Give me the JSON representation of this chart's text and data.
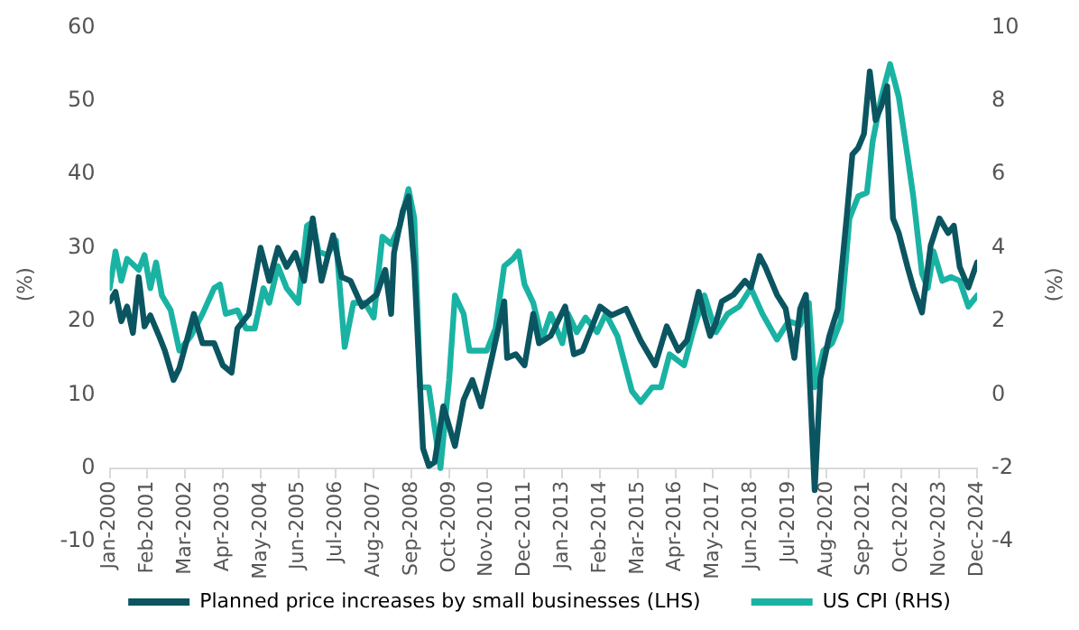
{
  "chart_data": {
    "type": "line",
    "ylabel": "(%)",
    "y2label": "(%)",
    "xlim": [
      "2000-01",
      "2024-12"
    ],
    "xticks": [
      {
        "value": "2000-01",
        "label": "Jan-2000"
      },
      {
        "value": "2001-02",
        "label": "Feb-2001"
      },
      {
        "value": "2002-03",
        "label": "Mar-2002"
      },
      {
        "value": "2003-04",
        "label": "Apr-2003"
      },
      {
        "value": "2004-05",
        "label": "May-2004"
      },
      {
        "value": "2005-06",
        "label": "Jun-2005"
      },
      {
        "value": "2006-07",
        "label": "Jul-2006"
      },
      {
        "value": "2007-08",
        "label": "Aug-2007"
      },
      {
        "value": "2008-09",
        "label": "Sep-2008"
      },
      {
        "value": "2009-10",
        "label": "Oct-2009"
      },
      {
        "value": "2010-11",
        "label": "Nov-2010"
      },
      {
        "value": "2011-12",
        "label": "Dec-2011"
      },
      {
        "value": "2013-01",
        "label": "Jan-2013"
      },
      {
        "value": "2014-02",
        "label": "Feb-2014"
      },
      {
        "value": "2015-03",
        "label": "Mar-2015"
      },
      {
        "value": "2016-04",
        "label": "Apr-2016"
      },
      {
        "value": "2017-05",
        "label": "May-2017"
      },
      {
        "value": "2018-06",
        "label": "Jun-2018"
      },
      {
        "value": "2019-07",
        "label": "Jul-2019"
      },
      {
        "value": "2020-08",
        "label": "Aug-2020"
      },
      {
        "value": "2021-09",
        "label": "Sep-2021"
      },
      {
        "value": "2022-10",
        "label": "Oct-2022"
      },
      {
        "value": "2023-11",
        "label": "Nov-2023"
      },
      {
        "value": "2024-12",
        "label": "Dec-2024"
      }
    ],
    "ylim": [
      -10,
      60
    ],
    "yticks": [
      -10,
      0,
      10,
      20,
      30,
      40,
      50,
      60
    ],
    "y2lim": [
      -4,
      10
    ],
    "y2ticks": [
      -4,
      -2,
      0,
      2,
      4,
      6,
      8,
      10
    ],
    "grid": false,
    "legend": "bottom",
    "marker": "none",
    "line_style": "solid",
    "series": [
      {
        "name": "Planned price increases by small businesses (LHS)",
        "color": "#0b5561",
        "x": [
          "2000-01",
          "2000-03",
          "2000-05",
          "2000-07",
          "2000-09",
          "2000-11",
          "2001-01",
          "2001-03",
          "2001-06",
          "2001-08",
          "2001-11",
          "2002-01",
          "2002-04",
          "2002-06",
          "2002-09",
          "2003-01",
          "2003-04",
          "2003-07",
          "2003-09",
          "2004-01",
          "2004-05",
          "2004-08",
          "2004-11",
          "2005-02",
          "2005-05",
          "2005-08",
          "2005-11",
          "2006-02",
          "2006-06",
          "2006-09",
          "2006-12",
          "2007-04",
          "2007-09",
          "2007-12",
          "2008-02",
          "2008-03",
          "2008-06",
          "2008-08",
          "2008-10",
          "2009-01",
          "2009-03",
          "2009-05",
          "2009-08",
          "2009-12",
          "2010-03",
          "2010-06",
          "2010-09",
          "2011-01",
          "2011-05",
          "2011-06",
          "2011-09",
          "2011-12",
          "2012-03",
          "2012-05",
          "2012-09",
          "2013-02",
          "2013-05",
          "2013-08",
          "2013-12",
          "2014-02",
          "2014-06",
          "2014-11",
          "2015-04",
          "2015-09",
          "2016-01",
          "2016-05",
          "2016-08",
          "2016-12",
          "2017-02",
          "2017-04",
          "2017-06",
          "2017-08",
          "2017-12",
          "2018-04",
          "2018-06",
          "2018-09",
          "2018-11",
          "2019-03",
          "2019-06",
          "2019-09",
          "2019-11",
          "2020-01",
          "2020-04",
          "2020-06",
          "2020-09",
          "2020-12",
          "2021-03",
          "2021-05",
          "2021-07",
          "2021-09",
          "2021-11",
          "2022-01",
          "2022-03",
          "2022-05",
          "2022-07",
          "2022-09",
          "2022-12",
          "2023-02",
          "2023-05",
          "2023-08",
          "2023-11",
          "2024-02",
          "2024-04",
          "2024-06",
          "2024-09",
          "2024-12"
        ],
        "values": [
          22.7,
          24,
          20,
          22,
          18.4,
          26,
          19.3,
          20.8,
          18,
          16,
          12,
          13.6,
          18,
          21,
          17,
          17,
          14,
          13,
          19,
          21,
          30,
          25.5,
          30,
          27.4,
          29.3,
          25.5,
          34,
          25.5,
          31.7,
          26,
          25.5,
          22,
          23.6,
          27,
          21,
          29.3,
          35,
          37,
          27.4,
          2.7,
          0.3,
          0.8,
          8.4,
          3,
          9.3,
          12,
          8.4,
          15.5,
          22.7,
          15,
          15.5,
          14,
          21,
          17,
          18,
          22,
          15.5,
          16,
          20,
          22,
          20.8,
          21.7,
          17.4,
          14,
          19.3,
          16,
          17.4,
          24,
          20.8,
          18,
          19.8,
          22.7,
          23.6,
          25.5,
          24.6,
          28.9,
          27.4,
          23.6,
          21.7,
          15,
          21.7,
          23.6,
          -3,
          12.2,
          17.9,
          21.7,
          34,
          42.7,
          43.6,
          45.5,
          54,
          47.4,
          49.3,
          52,
          34,
          32,
          27.4,
          24.6,
          21.2,
          30.3,
          34,
          32,
          33,
          27.4,
          24.6,
          28
        ]
      },
      {
        "name": "US CPI (RHS)",
        "color": "#1ab3a3",
        "axis": "y2",
        "x": [
          "2000-01",
          "2000-03",
          "2000-05",
          "2000-07",
          "2000-11",
          "2001-01",
          "2001-03",
          "2001-05",
          "2001-07",
          "2001-10",
          "2002-01",
          "2002-05",
          "2002-09",
          "2003-01",
          "2003-03",
          "2003-05",
          "2003-09",
          "2003-12",
          "2004-03",
          "2004-06",
          "2004-08",
          "2004-11",
          "2005-02",
          "2005-06",
          "2005-09",
          "2005-11",
          "2006-01",
          "2006-04",
          "2006-07",
          "2006-10",
          "2007-01",
          "2007-05",
          "2007-08",
          "2007-11",
          "2008-02",
          "2008-05",
          "2008-08",
          "2008-10",
          "2008-12",
          "2009-03",
          "2009-05",
          "2009-07",
          "2009-10",
          "2009-12",
          "2010-03",
          "2010-05",
          "2010-11",
          "2011-02",
          "2011-05",
          "2011-08",
          "2011-10",
          "2011-12",
          "2012-03",
          "2012-06",
          "2012-09",
          "2013-01",
          "2013-03",
          "2013-06",
          "2013-09",
          "2014-01",
          "2014-04",
          "2014-08",
          "2015-01",
          "2015-04",
          "2015-08",
          "2015-11",
          "2016-02",
          "2016-07",
          "2016-10",
          "2017-02",
          "2017-06",
          "2017-10",
          "2018-02",
          "2018-06",
          "2018-10",
          "2019-03",
          "2019-07",
          "2019-11",
          "2020-02",
          "2020-04",
          "2020-07",
          "2020-10",
          "2021-01",
          "2021-04",
          "2021-07",
          "2021-10",
          "2021-12",
          "2022-03",
          "2022-06",
          "2022-09",
          "2022-12",
          "2023-02",
          "2023-05",
          "2023-07",
          "2023-09",
          "2023-12",
          "2024-03",
          "2024-06",
          "2024-09",
          "2024-12"
        ],
        "values": [
          2.9,
          3.9,
          3.1,
          3.7,
          3.4,
          3.8,
          2.9,
          3.6,
          2.7,
          2.3,
          1.2,
          1.6,
          2.2,
          2.9,
          3.0,
          2.2,
          2.3,
          1.8,
          1.8,
          2.9,
          2.5,
          3.5,
          2.9,
          2.5,
          4.6,
          4.7,
          3.9,
          3.8,
          4.2,
          1.3,
          2.5,
          2.5,
          2.1,
          4.3,
          4.1,
          4.6,
          5.6,
          4.8,
          0.2,
          0.2,
          -0.9,
          -2.0,
          0.4,
          2.7,
          2.2,
          1.2,
          1.2,
          1.8,
          3.5,
          3.7,
          3.9,
          3.0,
          2.5,
          1.5,
          2.2,
          1.4,
          2.2,
          1.7,
          2.1,
          1.7,
          2.2,
          1.6,
          0.1,
          -0.2,
          0.2,
          0.2,
          1.1,
          0.8,
          1.7,
          2.7,
          1.7,
          2.2,
          2.4,
          2.9,
          2.2,
          1.5,
          2.0,
          1.9,
          2.5,
          0.2,
          1.2,
          1.4,
          2.0,
          4.8,
          5.4,
          5.5,
          6.9,
          8.1,
          9.0,
          8.1,
          6.5,
          5.4,
          3.3,
          2.9,
          3.9,
          3.1,
          3.2,
          3.1,
          2.4,
          2.7
        ]
      }
    ]
  }
}
